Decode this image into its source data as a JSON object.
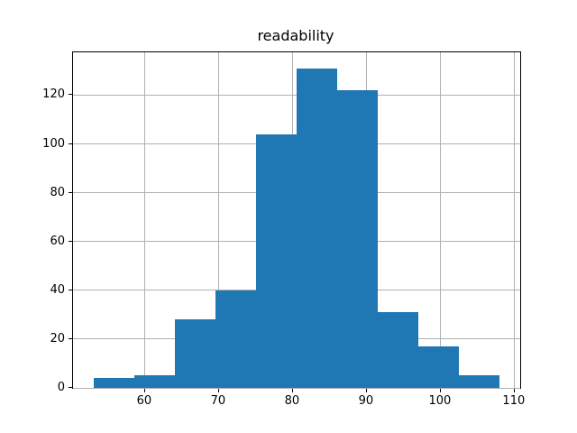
{
  "chart_data": {
    "type": "bar",
    "subtype": "histogram",
    "title": "readability",
    "xlabel": "",
    "ylabel": "",
    "bin_edges": [
      53.0,
      58.5,
      64.0,
      69.5,
      75.0,
      80.5,
      86.0,
      91.5,
      97.0,
      102.5,
      108.0
    ],
    "counts": [
      4,
      5,
      28,
      40,
      104,
      131,
      122,
      31,
      17,
      5
    ],
    "xticks": [
      60,
      70,
      80,
      90,
      100,
      110
    ],
    "yticks": [
      0,
      20,
      40,
      60,
      80,
      100,
      120
    ],
    "xlim": [
      50.25,
      110.75
    ],
    "ylim": [
      0,
      137.55
    ],
    "grid": true,
    "legend": null,
    "bar_color": "#1f77b4",
    "grid_color": "#b0b0b0",
    "axis_color": "#000000",
    "background_color": "#ffffff"
  }
}
